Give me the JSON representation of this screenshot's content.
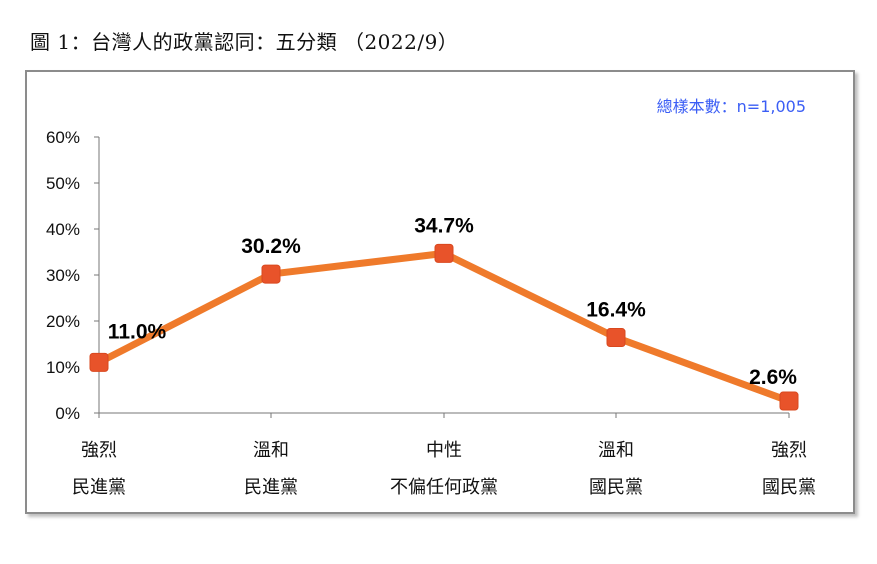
{
  "caption": "圖 1：台灣人的政黨認同：五分類 （2022/9）",
  "chart_data": {
    "type": "line",
    "annotation": "總樣本數：n=1,005",
    "categories": [
      [
        "強烈",
        "民進黨"
      ],
      [
        "溫和",
        "民進黨"
      ],
      [
        "中性",
        "不偏任何政黨"
      ],
      [
        "溫和",
        "國民黨"
      ],
      [
        "強烈",
        "國民黨"
      ]
    ],
    "values": [
      11.0,
      30.2,
      34.7,
      16.4,
      2.6
    ],
    "data_labels": [
      "11.0%",
      "30.2%",
      "34.7%",
      "16.4%",
      "2.6%"
    ],
    "y_ticks": [
      "0%",
      "10%",
      "20%",
      "30%",
      "40%",
      "50%",
      "60%"
    ],
    "ylim": [
      0,
      60
    ],
    "grid": false,
    "colors": {
      "line": "#ef7a2b",
      "marker": "#e8532a",
      "annotation": "#3b5ef5"
    }
  }
}
